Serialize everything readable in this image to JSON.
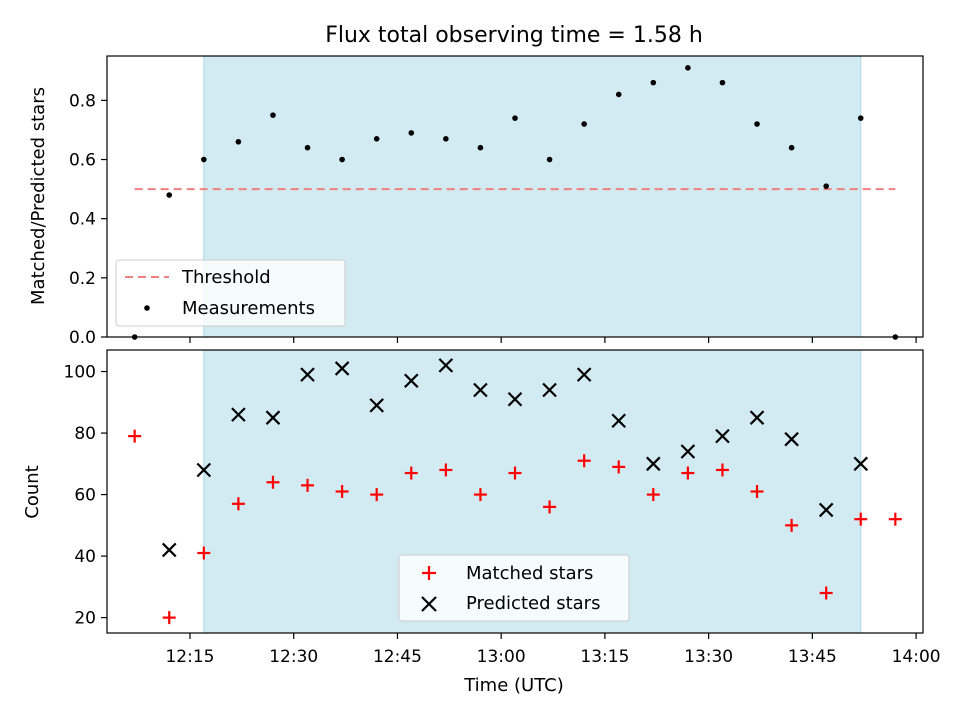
{
  "title": "Flux total observing time = 1.58 h",
  "colors": {
    "shade": "#add8e6",
    "threshold": "#f08080",
    "matched": "#ff0000",
    "predicted": "#000000",
    "measurement": "#000000"
  },
  "chart_data": [
    {
      "type": "scatter",
      "ylabel": "Matched/Predicted stars",
      "ylim": [
        0,
        0.95
      ],
      "yticks": [
        "0.0",
        "0.2",
        "0.4",
        "0.6",
        "0.8"
      ],
      "xlim": [
        "12:03",
        "14:01"
      ],
      "shaded_interval": [
        "12:17",
        "13:52"
      ],
      "threshold": {
        "name": "Threshold",
        "y": 0.5,
        "x": [
          "12:07",
          "13:57"
        ]
      },
      "series": [
        {
          "name": "Measurements",
          "x": [
            "12:07",
            "12:12",
            "12:17",
            "12:22",
            "12:27",
            "12:32",
            "12:37",
            "12:42",
            "12:47",
            "12:52",
            "12:57",
            "13:02",
            "13:07",
            "13:12",
            "13:17",
            "13:22",
            "13:27",
            "13:32",
            "13:37",
            "13:42",
            "13:47",
            "13:52",
            "13:57"
          ],
          "y": [
            0.0,
            0.48,
            0.6,
            0.66,
            0.75,
            0.64,
            0.6,
            0.67,
            0.69,
            0.67,
            0.64,
            0.74,
            0.6,
            0.72,
            0.82,
            0.86,
            0.91,
            0.86,
            0.72,
            0.64,
            0.51,
            0.74,
            0.0
          ]
        }
      ],
      "legend": "lower-left"
    },
    {
      "type": "scatter",
      "ylabel": "Count",
      "xlabel": "Time (UTC)",
      "ylim": [
        15,
        107
      ],
      "yticks": [
        "20",
        "40",
        "60",
        "80",
        "100"
      ],
      "xlim": [
        "12:03",
        "14:01"
      ],
      "xticks": [
        "12:15",
        "12:30",
        "12:45",
        "13:00",
        "13:15",
        "13:30",
        "13:45",
        "14:00"
      ],
      "shaded_interval": [
        "12:17",
        "13:52"
      ],
      "series": [
        {
          "name": "Matched stars",
          "marker": "plus",
          "x": [
            "12:07",
            "12:12",
            "12:17",
            "12:22",
            "12:27",
            "12:32",
            "12:37",
            "12:42",
            "12:47",
            "12:52",
            "12:57",
            "13:02",
            "13:07",
            "13:12",
            "13:17",
            "13:22",
            "13:27",
            "13:32",
            "13:37",
            "13:42",
            "13:47",
            "13:52",
            "13:57"
          ],
          "y": [
            79,
            20,
            41,
            57,
            64,
            63,
            61,
            60,
            67,
            68,
            60,
            67,
            56,
            71,
            69,
            60,
            67,
            68,
            61,
            50,
            28,
            52,
            52
          ]
        },
        {
          "name": "Predicted stars",
          "marker": "x",
          "x": [
            "12:12",
            "12:17",
            "12:22",
            "12:27",
            "12:32",
            "12:37",
            "12:42",
            "12:47",
            "12:52",
            "12:57",
            "13:02",
            "13:07",
            "13:12",
            "13:17",
            "13:22",
            "13:27",
            "13:32",
            "13:37",
            "13:42",
            "13:47",
            "13:52"
          ],
          "y": [
            42,
            68,
            86,
            85,
            99,
            101,
            89,
            97,
            102,
            94,
            91,
            94,
            99,
            84,
            70,
            74,
            79,
            85,
            78,
            55,
            70
          ]
        }
      ],
      "legend": "lower-center"
    }
  ]
}
